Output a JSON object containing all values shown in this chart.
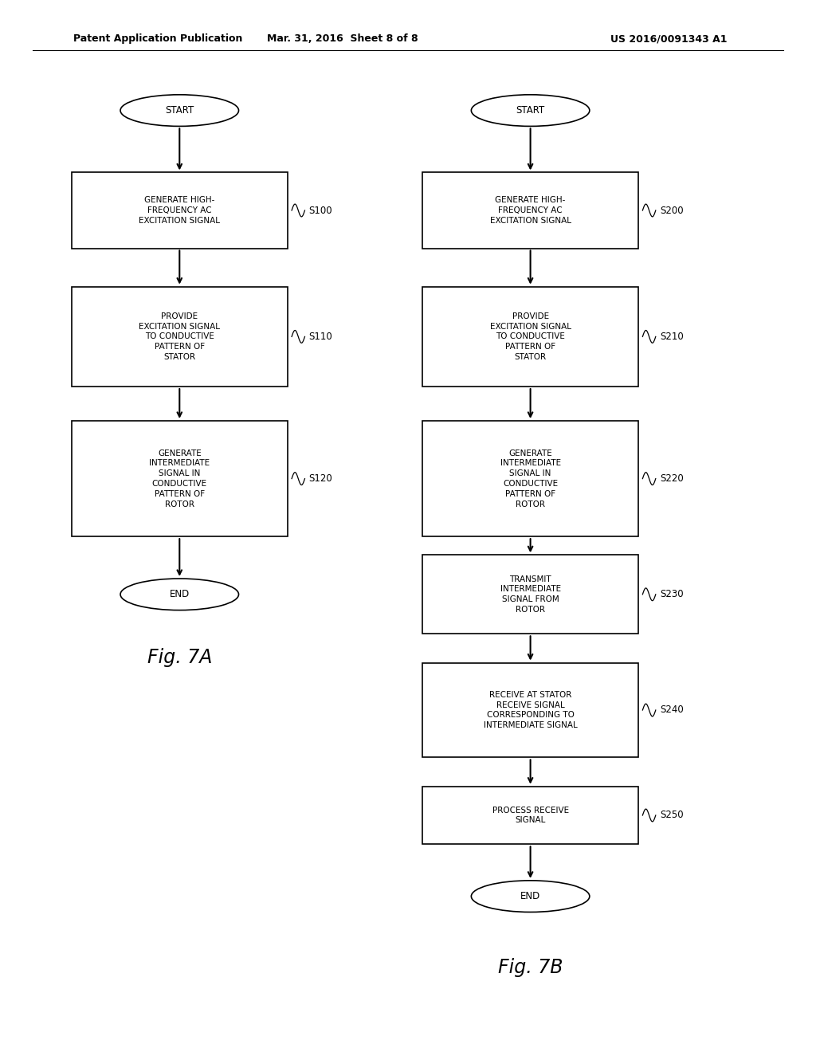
{
  "bg_color": "#ffffff",
  "header_left": "Patent Application Publication",
  "header_mid": "Mar. 31, 2016  Sheet 8 of 8",
  "header_right": "US 2016/0091343 A1",
  "fig7a_title": "Fig. 7A",
  "fig7b_title": "Fig. 7B",
  "font_size_box": 7.5,
  "font_size_label": 8.5,
  "font_size_fig": 17,
  "font_size_header": 9
}
